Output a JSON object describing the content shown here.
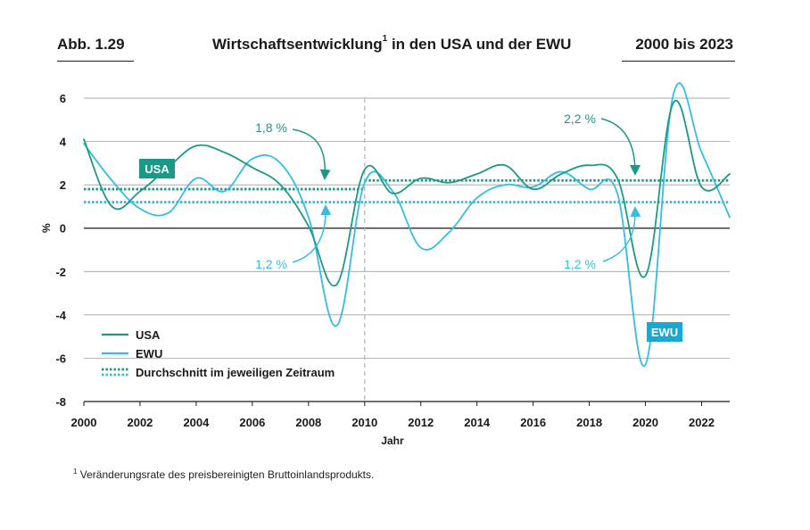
{
  "header": {
    "figure_number": "Abb. 1.29",
    "title": "Wirtschaftsentwicklung",
    "title_footnote_mark": "1",
    "title_suffix": " in den USA und der EWU",
    "period": "2000 bis 2023"
  },
  "footnote": {
    "mark": "1",
    "text": " Veränderungsrate des preisbereinigten Bruttoinlandsprodukts."
  },
  "colors": {
    "usa": "#1a9a86",
    "ewu": "#33bde3",
    "usa_label_bg": "#1a9a86",
    "ewu_label_bg": "#17a8d4",
    "grid": "#8c8c8c",
    "zero_line": "#1a1a1a",
    "crisis_line": "#b0b0b0"
  },
  "chart_data": {
    "type": "line",
    "xlabel": "Jahr",
    "ylabel": "%",
    "xlim": [
      2000,
      2023
    ],
    "ylim": [
      -8,
      6
    ],
    "x_ticks": [
      2000,
      2002,
      2004,
      2006,
      2008,
      2010,
      2012,
      2014,
      2016,
      2018,
      2020,
      2022
    ],
    "x_tick_labels": [
      "2000",
      "2002",
      "2004",
      "2006",
      "2008",
      "2010",
      "2012",
      "2014",
      "2016",
      "2018",
      "2020",
      "2022"
    ],
    "y_ticks": [
      -8,
      -6,
      -4,
      -2,
      0,
      2,
      4,
      6
    ],
    "y_tick_labels": [
      "-8",
      "-6",
      "-4",
      "-2",
      "0",
      "2",
      "4",
      "6"
    ],
    "grid": true,
    "reference_line_x": 2010,
    "series": [
      {
        "name": "USA",
        "color": "#1a9a86",
        "x": [
          2000,
          2001,
          2002,
          2003,
          2004,
          2005,
          2006,
          2007,
          2008,
          2009,
          2010,
          2011,
          2012,
          2013,
          2014,
          2015,
          2016,
          2017,
          2018,
          2019,
          2020,
          2021,
          2022,
          2023
        ],
        "values": [
          4.1,
          1.0,
          1.7,
          2.8,
          3.8,
          3.5,
          2.8,
          2.0,
          0.1,
          -2.6,
          2.7,
          1.6,
          2.3,
          2.1,
          2.5,
          2.9,
          1.8,
          2.5,
          2.9,
          2.3,
          -2.2,
          5.8,
          1.9,
          2.5
        ]
      },
      {
        "name": "EWU",
        "color": "#33bde3",
        "x": [
          2000,
          2001,
          2002,
          2003,
          2004,
          2005,
          2006,
          2007,
          2008,
          2009,
          2010,
          2011,
          2012,
          2013,
          2014,
          2015,
          2016,
          2017,
          2018,
          2019,
          2020,
          2021,
          2022,
          2023
        ],
        "values": [
          3.9,
          2.2,
          0.9,
          0.7,
          2.3,
          1.7,
          3.2,
          3.0,
          0.5,
          -4.5,
          2.1,
          1.7,
          -0.9,
          -0.2,
          1.4,
          2.0,
          1.9,
          2.6,
          1.8,
          1.6,
          -6.3,
          6.2,
          3.5,
          0.5
        ]
      }
    ],
    "averages": [
      {
        "series": "USA",
        "value": 1.8,
        "from": 2000,
        "to": 2010,
        "label": "1,8 %"
      },
      {
        "series": "EWU",
        "value": 1.2,
        "from": 2000,
        "to": 2010,
        "label": "1,2 %"
      },
      {
        "series": "USA",
        "value": 2.2,
        "from": 2010,
        "to": 2023,
        "label": "2,2 %"
      },
      {
        "series": "EWU",
        "value": 1.2,
        "from": 2010,
        "to": 2023,
        "label": "1,2 %"
      }
    ],
    "series_tags": [
      {
        "series": "USA",
        "text": "USA"
      },
      {
        "series": "EWU",
        "text": "EWU"
      }
    ],
    "legend": {
      "position": "bottom-left",
      "items": [
        {
          "label": "USA",
          "style": "solid",
          "series": "USA"
        },
        {
          "label": "EWU",
          "style": "solid",
          "series": "EWU"
        },
        {
          "label": "Durchschnitt im jeweiligen Zeitraum",
          "style": "dotted",
          "series": "both"
        }
      ]
    }
  }
}
